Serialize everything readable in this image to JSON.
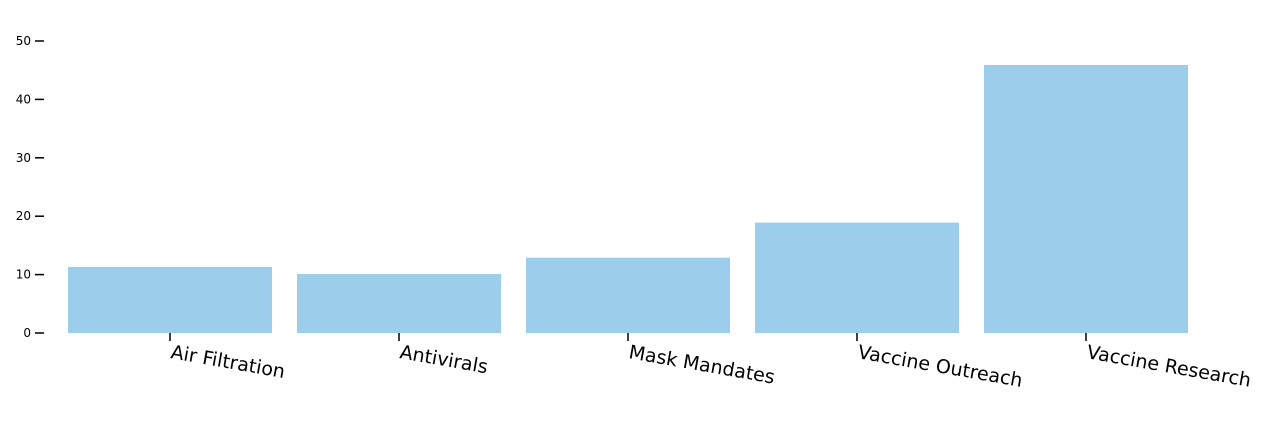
{
  "chart_data": {
    "type": "bar",
    "categories": [
      "Air Filtration",
      "Antivirals",
      "Mask Mandates",
      "Vaccine Outreach",
      "Vaccine Research"
    ],
    "values": [
      11.3,
      10.1,
      12.9,
      18.9,
      45.9
    ],
    "title": "",
    "xlabel": "",
    "ylabel": "",
    "ylim": [
      0,
      50
    ],
    "yticks": [
      0,
      10,
      20,
      30,
      40,
      50
    ],
    "grid": false,
    "bar_color": "#9ccdeb"
  }
}
